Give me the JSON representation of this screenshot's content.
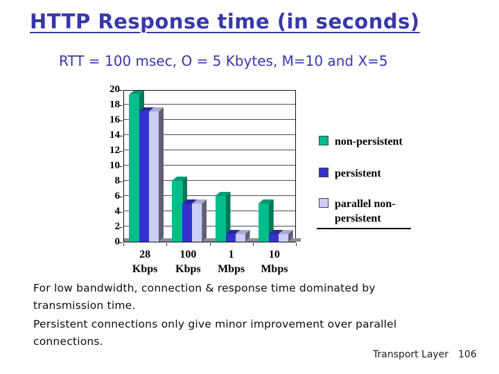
{
  "slide": {
    "title": "HTTP Response time (in seconds)",
    "subtitle": "RTT = 100 msec, O = 5 Kbytes, M=10 and X=5",
    "paragraph1": "For low bandwidth, connection & response time  dominated by\ntransmission time.",
    "paragraph2": "Persistent connections only give minor improvement over parallel\nconnections.",
    "footer": {
      "section": "Transport Layer",
      "page": "106"
    },
    "colors": {
      "heading": "#3737AC",
      "body_text": "#0c0c0c"
    }
  },
  "chart_data": {
    "type": "bar",
    "title": "",
    "xlabel": "",
    "ylabel": "",
    "categories": [
      "28\nKbps",
      "100\nKbps",
      "1\nMbps",
      "10\nMbps"
    ],
    "series": [
      {
        "name": "non-persistent",
        "values": [
          19.3,
          8,
          6,
          5
        ],
        "color": "#00BE8C",
        "side_color": "#00785A",
        "top_color": "#009B70"
      },
      {
        "name": "persistent",
        "values": [
          17.1,
          5,
          1,
          1
        ],
        "color": "#3333CC",
        "side_color": "#1F1F80",
        "top_color": "#28289E"
      },
      {
        "name": "parallel non-\npersistent",
        "values": [
          17.1,
          5,
          1,
          1
        ],
        "color": "#CCCCFA",
        "side_color": "#5E6175",
        "top_color": "#A9AACD"
      }
    ],
    "ylim": [
      0,
      20
    ],
    "ytick_step": 2,
    "grid": true,
    "legend_position": "right",
    "floor_color": "#8a8d99"
  }
}
